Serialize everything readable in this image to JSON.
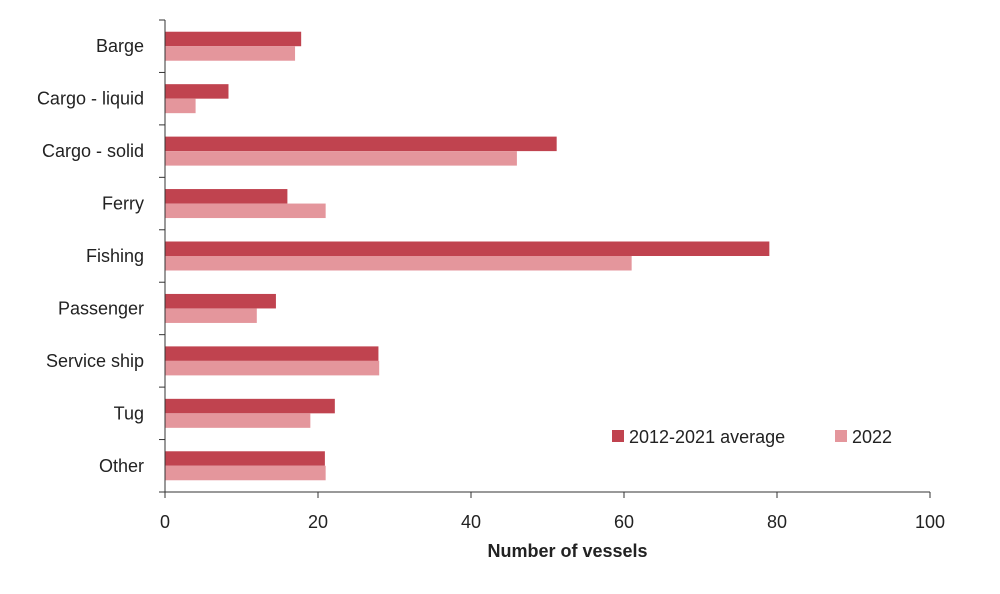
{
  "chart_data": {
    "type": "bar",
    "orientation": "horizontal",
    "categories": [
      "Barge",
      "Cargo - liquid",
      "Cargo - solid",
      "Ferry",
      "Fishing",
      "Passenger",
      "Service ship",
      "Tug",
      "Other"
    ],
    "series": [
      {
        "name": "2012-2021 average",
        "color": "#c0434f",
        "values": [
          17.8,
          8.3,
          51.2,
          16.0,
          79.0,
          14.5,
          27.9,
          22.2,
          20.9
        ]
      },
      {
        "name": "2022",
        "color": "#e4969c",
        "values": [
          17,
          4,
          46,
          21,
          61,
          12,
          28,
          19,
          21
        ]
      }
    ],
    "xlabel": "Number of vessels",
    "ylabel": "",
    "xlim": [
      0,
      100
    ],
    "xticks": [
      0,
      20,
      40,
      60,
      80,
      100
    ],
    "xtick_labels": [
      "0",
      "20",
      "40",
      "60",
      "80",
      "100"
    ],
    "grid": false,
    "legend": {
      "placement": "bottom-right",
      "entries": [
        "2012-2021 average",
        "2022"
      ]
    }
  }
}
